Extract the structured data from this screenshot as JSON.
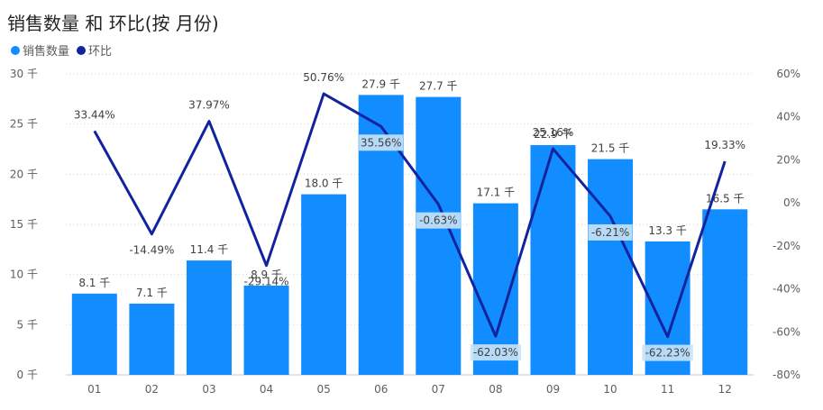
{
  "title": "销售数量 和 环比(按 月份)",
  "legend": [
    {
      "label": "销售数量",
      "color": "#118DFF"
    },
    {
      "label": "环比",
      "color": "#12239E"
    }
  ],
  "chart_data": {
    "type": "bar",
    "categories": [
      "01",
      "02",
      "03",
      "04",
      "05",
      "06",
      "07",
      "08",
      "09",
      "10",
      "11",
      "12"
    ],
    "series": [
      {
        "name": "销售数量",
        "type": "bar",
        "axis": "left",
        "values": [
          8100,
          7100,
          11400,
          8900,
          18000,
          27900,
          27700,
          17100,
          22900,
          21500,
          13300,
          16500
        ],
        "labels": [
          "8.1 千",
          "7.1 千",
          "11.4 千",
          "8.9 千",
          "18.0 千",
          "27.9 千",
          "27.7 千",
          "17.1 千",
          "22.9 千",
          "21.5 千",
          "13.3 千",
          "16.5 千"
        ]
      },
      {
        "name": "环比",
        "type": "line",
        "axis": "right",
        "values": [
          33.44,
          -14.49,
          37.97,
          -29.14,
          50.76,
          35.56,
          -0.63,
          -62.03,
          25.16,
          -6.21,
          -62.23,
          19.33
        ],
        "labels": [
          "33.44%",
          "-14.49%",
          "37.97%",
          "-29.14%",
          "50.76%",
          "35.56%",
          "-0.63%",
          "-62.03%",
          "25.16%",
          "-6.21%",
          "-62.23%",
          "19.33%"
        ]
      }
    ],
    "y_left": {
      "ylim": [
        0,
        30000
      ],
      "ticks": [
        "0 千",
        "5 千",
        "10 千",
        "15 千",
        "20 千",
        "25 千",
        "30 千"
      ]
    },
    "y_right": {
      "ylim": [
        -80,
        60
      ],
      "ticks": [
        "-80%",
        "-60%",
        "-40%",
        "-20%",
        "0%",
        "20%",
        "40%",
        "60%"
      ]
    },
    "grid": true,
    "legend_position": "top-left",
    "colors": {
      "bar": "#118DFF",
      "line": "#12239E",
      "label_bg": "#C9E3F7"
    }
  }
}
